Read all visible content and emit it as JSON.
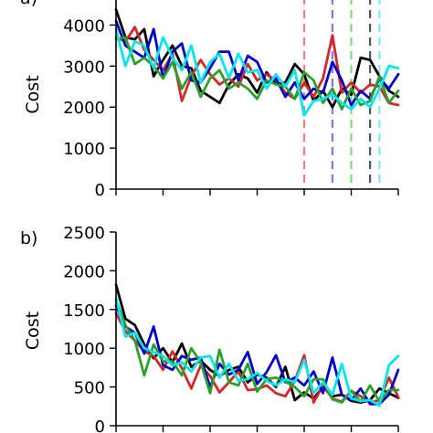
{
  "chart_data": [
    {
      "type": "line",
      "panel_label": "a)",
      "ylabel": "Cost",
      "ylim": [
        0,
        4700
      ],
      "yticks": [
        0,
        1000,
        2000,
        3000,
        4000
      ],
      "ytick_labels": [
        "0",
        "1000",
        "2000",
        "3000",
        "4000"
      ],
      "x": [
        1,
        2,
        3,
        4,
        5,
        6,
        7,
        8,
        9,
        10,
        11,
        12,
        13,
        14,
        15,
        16,
        17,
        18,
        19,
        20,
        21,
        22,
        23,
        24,
        25,
        26,
        27,
        28,
        29,
        30,
        31
      ],
      "xlim": [
        1,
        31
      ],
      "xticks": [
        1,
        6,
        11,
        16,
        21,
        26,
        31
      ],
      "series": [
        {
          "color": "#000000",
          "values": [
            4380,
            3700,
            3650,
            3900,
            2750,
            3150,
            3500,
            3000,
            2950,
            2400,
            2250,
            2100,
            2550,
            2800,
            2700,
            2350,
            2850,
            2550,
            2600,
            3050,
            2800,
            2150,
            2400,
            2000,
            2450,
            2300,
            3200,
            3150,
            2750,
            2400,
            2250
          ]
        },
        {
          "color": "#d62728",
          "values": [
            3700,
            3600,
            3950,
            3400,
            3150,
            2900,
            3300,
            2150,
            2750,
            3150,
            2800,
            2550,
            2700,
            2500,
            3050,
            2650,
            2800,
            2650,
            2350,
            2200,
            2600,
            2250,
            2700,
            3750,
            2350,
            2600,
            2350,
            2550,
            2500,
            2100,
            2050
          ]
        },
        {
          "color": "#0000cc",
          "values": [
            4100,
            3500,
            3350,
            3200,
            3900,
            2700,
            3350,
            3550,
            2650,
            2600,
            2950,
            3350,
            3350,
            2650,
            3250,
            3100,
            2600,
            2700,
            2250,
            2600,
            2200,
            2450,
            2350,
            3100,
            2650,
            2050,
            2400,
            2200,
            2700,
            2450,
            2800
          ]
        },
        {
          "color": "#2ca02c",
          "values": [
            3650,
            3700,
            3050,
            3200,
            3000,
            2700,
            3100,
            2450,
            2850,
            2250,
            2700,
            2900,
            2450,
            2600,
            2450,
            2200,
            2650,
            2550,
            2500,
            2200,
            2850,
            2650,
            2100,
            2450,
            1950,
            2450,
            2050,
            2150,
            2750,
            2100,
            2400
          ]
        },
        {
          "color": "#00e5ee",
          "values": [
            3900,
            3000,
            3600,
            3500,
            2950,
            3700,
            3200,
            2900,
            3500,
            2600,
            3100,
            3300,
            2700,
            3300,
            2850,
            2900,
            2450,
            2800,
            2500,
            2900,
            1800,
            2150,
            2200,
            2300,
            2100,
            1950,
            2200,
            2000,
            2450,
            3000,
            2950
          ]
        }
      ],
      "vlines": [
        {
          "x": 21,
          "color": "#f08080"
        },
        {
          "x": 24,
          "color": "#7b7bf0"
        },
        {
          "x": 26,
          "color": "#7fd97f"
        },
        {
          "x": 28,
          "color": "#555555"
        },
        {
          "x": 29,
          "color": "#7fe9f0"
        }
      ]
    },
    {
      "type": "line",
      "panel_label": "b)",
      "ylabel": "Cost",
      "ylim": [
        0,
        2500
      ],
      "yticks": [
        0,
        500,
        1000,
        1500,
        2000,
        2500
      ],
      "ytick_labels": [
        "0",
        "500",
        "1000",
        "1500",
        "2000",
        "2500"
      ],
      "x": [
        1,
        2,
        3,
        4,
        5,
        6,
        7,
        8,
        9,
        10,
        11,
        12,
        13,
        14,
        15,
        16,
        17,
        18,
        19,
        20,
        21,
        22,
        23,
        24,
        25,
        26,
        27,
        28,
        29,
        30,
        31
      ],
      "xlim": [
        1,
        31
      ],
      "xticks": [
        1,
        6,
        11,
        16,
        21,
        26,
        31
      ],
      "series": [
        {
          "color": "#000000",
          "values": [
            1820,
            1380,
            1300,
            1050,
            870,
            1000,
            820,
            1060,
            760,
            840,
            720,
            640,
            720,
            760,
            560,
            660,
            620,
            500,
            760,
            330,
            430,
            350,
            500,
            380,
            400,
            320,
            300,
            330,
            480,
            420,
            360
          ]
        },
        {
          "color": "#d62728",
          "values": [
            1450,
            1220,
            1100,
            960,
            900,
            720,
            960,
            740,
            480,
            780,
            640,
            430,
            560,
            700,
            460,
            470,
            520,
            420,
            380,
            580,
            910,
            300,
            520,
            350,
            310,
            450,
            380,
            300,
            330,
            620,
            370
          ]
        },
        {
          "color": "#0000cc",
          "values": [
            1550,
            1280,
            1200,
            930,
            1280,
            780,
            720,
            900,
            850,
            880,
            500,
            800,
            660,
            720,
            950,
            540,
            690,
            910,
            560,
            620,
            520,
            700,
            420,
            880,
            400,
            330,
            480,
            280,
            280,
            400,
            720
          ]
        },
        {
          "color": "#2ca02c",
          "values": [
            1620,
            1300,
            1100,
            650,
            1050,
            830,
            830,
            650,
            1000,
            820,
            420,
            980,
            560,
            520,
            800,
            440,
            600,
            620,
            570,
            500,
            380,
            600,
            600,
            340,
            300,
            450,
            310,
            520,
            310,
            460,
            460
          ]
        },
        {
          "color": "#00e5ee",
          "values": [
            1650,
            1150,
            1200,
            1000,
            950,
            900,
            780,
            820,
            700,
            880,
            900,
            620,
            800,
            580,
            600,
            680,
            580,
            520,
            600,
            560,
            850,
            420,
            560,
            400,
            800,
            350,
            320,
            330,
            260,
            780,
            900
          ]
        }
      ]
    }
  ]
}
